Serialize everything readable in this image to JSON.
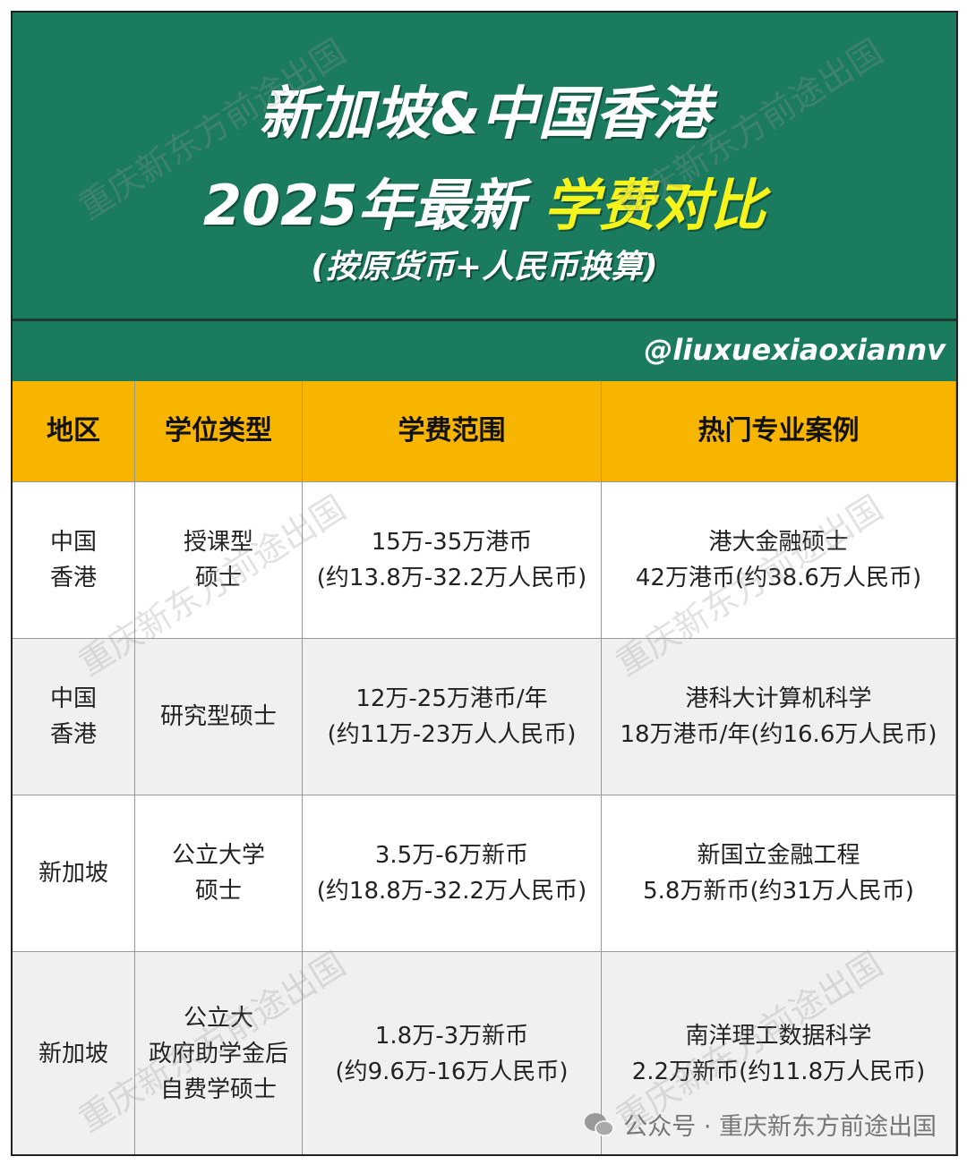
{
  "header": {
    "title_line1": "新加坡&中国香港",
    "title_line2_plain": "2025年最新",
    "title_line2_highlight": "学费对比",
    "subtitle": "(按原货币+人民币换算)",
    "handle": "@liuxuexiaoxiannv"
  },
  "table": {
    "columns": [
      "地区",
      "学位类型",
      "学费范围",
      "热门专业案例"
    ],
    "rows": [
      [
        [
          "中国",
          "香港"
        ],
        [
          "授课型",
          "硕士"
        ],
        [
          "15万-35万港币",
          "(约13.8万-32.2万人民币)"
        ],
        [
          "港大金融硕士",
          "42万港币(约38.6万人民币)"
        ]
      ],
      [
        [
          "中国",
          "香港"
        ],
        [
          "研究型硕士"
        ],
        [
          "12万-25万港币/年",
          "(约11万-23万人人民币)"
        ],
        [
          "港科大计算机科学",
          "18万港币/年(约16.6万人民币)"
        ]
      ],
      [
        [
          "新加坡"
        ],
        [
          "公立大学",
          "硕士"
        ],
        [
          "3.5万-6万新币",
          "(约18.8万-32.2万人民币)"
        ],
        [
          "新国立金融工程",
          "5.8万新币(约31万人民币)"
        ]
      ],
      [
        [
          "新加坡"
        ],
        [
          "公立大",
          "政府助学金后",
          "自费学硕士"
        ],
        [
          "1.8万-3万新币",
          "(约9.6万-16万人民币)"
        ],
        [
          "南洋理工数据科学",
          "2.2万新币(约11.8万人民币)"
        ]
      ]
    ]
  },
  "watermark": "重庆新东方前途出国",
  "footer": "公众号 · 重庆新东方前途出国"
}
